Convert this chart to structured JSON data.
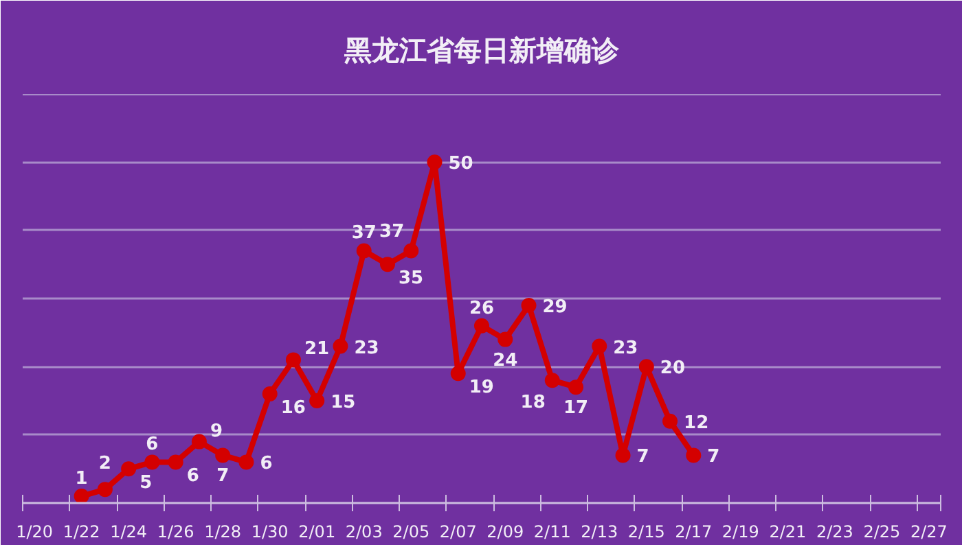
{
  "chart_data": {
    "type": "line",
    "title": "黑龙江省每日新增确诊",
    "categories": [
      "1/20",
      null,
      "1/22",
      null,
      "1/24",
      null,
      "1/26",
      null,
      "1/28",
      null,
      "1/30",
      null,
      "2/01",
      null,
      "2/03",
      null,
      "2/05",
      null,
      "2/07",
      null,
      "2/09",
      null,
      "2/11",
      null,
      "2/13",
      null,
      "2/15",
      null,
      "2/17",
      null,
      "2/19",
      null,
      "2/21",
      null,
      "2/23",
      null,
      "2/25",
      null,
      "2/27"
    ],
    "series": [
      {
        "color": "#d40000",
        "values": [
          null,
          null,
          1,
          2,
          5,
          6,
          6,
          9,
          7,
          6,
          16,
          21,
          15,
          23,
          37,
          35,
          37,
          50,
          19,
          26,
          24,
          29,
          18,
          17,
          23,
          7,
          20,
          12,
          7,
          null,
          null,
          null,
          null,
          null,
          null,
          null,
          null,
          null,
          null
        ]
      }
    ],
    "ylim": [
      0,
      60
    ],
    "yticks": [
      0,
      10,
      20,
      30,
      40,
      50,
      60
    ],
    "tick_labels": "x",
    "grid": "y",
    "marker": "circle",
    "line_style": "solid",
    "data_labels": true
  }
}
